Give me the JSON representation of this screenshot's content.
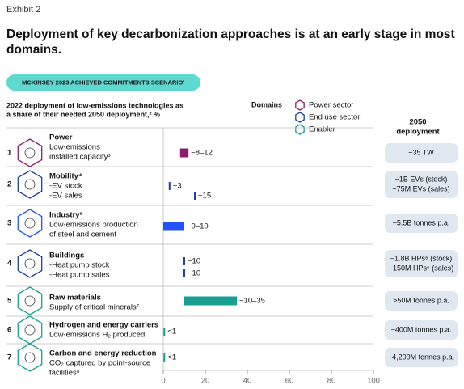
{
  "chart_data": {
    "type": "range-bar",
    "exhibit": "Exhibit 2",
    "title": [
      "Deployment of key decarbonization approaches is at an early stage in most",
      "domains."
    ],
    "scenario": "MCKINSEY 2023 ACHIEVED COMMITMENTS SCENARIO¹",
    "subtitle": [
      "2022 deployment of low-emissions technologies as",
      "a share of their needed 2050 deployment,² %"
    ],
    "legend": {
      "title": "Domains",
      "items": [
        {
          "name": "Power sector",
          "color": "#8e1d6f"
        },
        {
          "name": "End use sector",
          "color": "#1f3f9e"
        },
        {
          "name": "Enabler",
          "color": "#17a092"
        }
      ]
    },
    "right_header": [
      "2050",
      "deployment"
    ],
    "xlim": [
      0,
      100
    ],
    "xticks": [
      0,
      20,
      40,
      60,
      80,
      100
    ],
    "rows": [
      {
        "number": "1",
        "title": "Power",
        "lines": [
          "Low-emissions",
          "installed capacity³"
        ],
        "color": "#8e1d6f",
        "bars": [
          {
            "range": [
              8,
              12
            ],
            "value_label": "~8–12"
          }
        ],
        "deployment_2050": [
          "~35 TW"
        ]
      },
      {
        "number": "2",
        "title": "Mobility⁴",
        "lines": [
          "-EV stock",
          "-EV sales"
        ],
        "color": "#1f3f9e",
        "bars": [
          {
            "value": 3,
            "value_label": "~3"
          },
          {
            "value": 15,
            "value_label": "~15"
          }
        ],
        "deployment_2050": [
          "~1B EVs (stock)",
          "~75M EVs (sales)"
        ]
      },
      {
        "number": "3",
        "title": "Industry⁵",
        "lines": [
          "Low-emissions production",
          "of steel and cement"
        ],
        "color": "#2251ff",
        "bars": [
          {
            "range": [
              0,
              10
            ],
            "value_label": "~0–10"
          }
        ],
        "deployment_2050": [
          "~5.5B tonnes p.a."
        ]
      },
      {
        "number": "4",
        "title": "Buildings",
        "lines": [
          "-Heat pump stock",
          "-Heat pump sales"
        ],
        "color": "#1f3f9e",
        "bars": [
          {
            "value": 10,
            "value_label": "~10"
          },
          {
            "value": 10,
            "value_label": "~10"
          }
        ],
        "deployment_2050": [
          "~1.8B HPs⁶ (stock)",
          "~150M HPs⁶ (sales)"
        ]
      },
      {
        "number": "5",
        "title": "Raw materials",
        "lines": [
          "Supply of critical minerals⁷"
        ],
        "color": "#17a092",
        "bars": [
          {
            "range": [
              10,
              35
            ],
            "value_label": "~10–35"
          }
        ],
        "deployment_2050": [
          ">50M tonnes p.a."
        ]
      },
      {
        "number": "6",
        "title": "Hydrogen and energy carriers",
        "lines": [
          "Low-emissions H₂ produced"
        ],
        "color": "#17a092",
        "bars": [
          {
            "value": 0.5,
            "value_label": "<1"
          }
        ],
        "deployment_2050": [
          "~400M tonnes p.a."
        ]
      },
      {
        "number": "7",
        "title": "Carbon and energy reduction",
        "lines": [
          "CO₂ captured by point-source",
          "facilities⁸"
        ],
        "color": "#17a092",
        "bars": [
          {
            "value": 0.5,
            "value_label": "<1"
          }
        ],
        "deployment_2050": [
          "~4,200M tonnes p.a."
        ]
      }
    ]
  }
}
